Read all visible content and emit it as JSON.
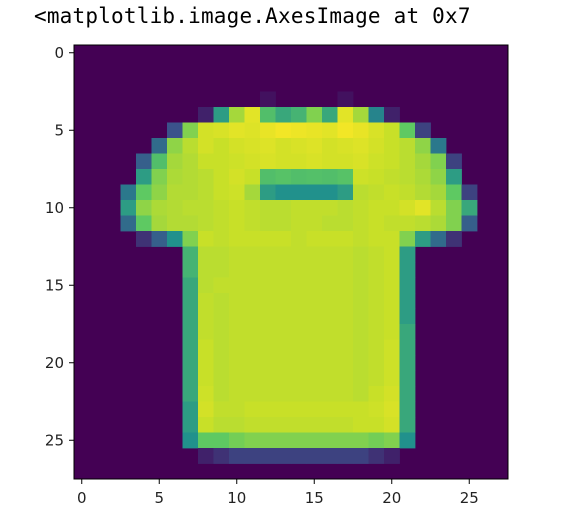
{
  "output_text": "<matplotlib.image.AxesImage at 0x7",
  "chart_data": {
    "type": "heatmap",
    "title": "",
    "xlabel": "",
    "ylabel": "",
    "colormap": "viridis",
    "grid": false,
    "xlim": [
      -0.5,
      27.5
    ],
    "ylim": [
      27.5,
      -0.5
    ],
    "xticks": [
      0,
      5,
      10,
      15,
      20,
      25
    ],
    "yticks": [
      0,
      5,
      10,
      15,
      20,
      25
    ],
    "rows": 28,
    "cols": 28,
    "values": [
      [
        0,
        0,
        0,
        0,
        0,
        0,
        0,
        0,
        0,
        0,
        0,
        0,
        0,
        0,
        0,
        0,
        0,
        0,
        0,
        0,
        0,
        0,
        0,
        0,
        0,
        0,
        0,
        0
      ],
      [
        0,
        0,
        0,
        0,
        0,
        0,
        0,
        0,
        0,
        0,
        0,
        0,
        0,
        0,
        0,
        0,
        0,
        0,
        0,
        0,
        0,
        0,
        0,
        0,
        0,
        0,
        0,
        0
      ],
      [
        0,
        0,
        0,
        0,
        0,
        0,
        0,
        0,
        0,
        0,
        0,
        0,
        0,
        0,
        0,
        0,
        0,
        0,
        0,
        0,
        0,
        0,
        0,
        0,
        0,
        0,
        0,
        0
      ],
      [
        0,
        0,
        0,
        0,
        0,
        0,
        0,
        0,
        0,
        0,
        0,
        0,
        0.05,
        0,
        0,
        0,
        0,
        0.05,
        0,
        0,
        0,
        0,
        0,
        0,
        0,
        0,
        0,
        0
      ],
      [
        0,
        0,
        0,
        0,
        0,
        0,
        0,
        0,
        0.1,
        0.55,
        0.85,
        0.95,
        0.7,
        0.6,
        0.65,
        0.8,
        0.6,
        0.95,
        0.85,
        0.45,
        0.1,
        0,
        0,
        0,
        0,
        0,
        0,
        0
      ],
      [
        0,
        0,
        0,
        0,
        0,
        0,
        0.25,
        0.8,
        0.92,
        0.93,
        0.95,
        0.94,
        0.96,
        0.98,
        0.97,
        0.96,
        0.95,
        0.98,
        0.96,
        0.93,
        0.9,
        0.75,
        0.2,
        0,
        0,
        0,
        0,
        0
      ],
      [
        0,
        0,
        0,
        0,
        0,
        0.35,
        0.82,
        0.88,
        0.92,
        0.9,
        0.92,
        0.93,
        0.94,
        0.92,
        0.93,
        0.94,
        0.92,
        0.93,
        0.94,
        0.92,
        0.9,
        0.88,
        0.82,
        0.4,
        0,
        0,
        0,
        0
      ],
      [
        0,
        0,
        0,
        0,
        0.3,
        0.7,
        0.85,
        0.87,
        0.9,
        0.9,
        0.91,
        0.92,
        0.93,
        0.92,
        0.92,
        0.93,
        0.92,
        0.92,
        0.93,
        0.91,
        0.9,
        0.88,
        0.85,
        0.8,
        0.2,
        0,
        0,
        0
      ],
      [
        0,
        0,
        0,
        0,
        0.55,
        0.8,
        0.86,
        0.87,
        0.88,
        0.9,
        0.92,
        0.9,
        0.7,
        0.72,
        0.7,
        0.71,
        0.7,
        0.72,
        0.91,
        0.9,
        0.89,
        0.88,
        0.86,
        0.82,
        0.55,
        0,
        0,
        0
      ],
      [
        0,
        0,
        0,
        0.4,
        0.75,
        0.82,
        0.87,
        0.87,
        0.88,
        0.9,
        0.91,
        0.85,
        0.55,
        0.5,
        0.5,
        0.5,
        0.5,
        0.55,
        0.88,
        0.89,
        0.9,
        0.89,
        0.87,
        0.85,
        0.75,
        0.2,
        0,
        0
      ],
      [
        0,
        0,
        0,
        0.55,
        0.82,
        0.86,
        0.87,
        0.88,
        0.88,
        0.89,
        0.9,
        0.89,
        0.88,
        0.88,
        0.89,
        0.89,
        0.89,
        0.88,
        0.89,
        0.9,
        0.9,
        0.92,
        0.95,
        0.88,
        0.8,
        0.6,
        0,
        0
      ],
      [
        0,
        0,
        0,
        0.35,
        0.75,
        0.85,
        0.87,
        0.87,
        0.88,
        0.89,
        0.9,
        0.89,
        0.88,
        0.88,
        0.89,
        0.89,
        0.88,
        0.88,
        0.89,
        0.9,
        0.89,
        0.89,
        0.88,
        0.86,
        0.8,
        0.3,
        0,
        0
      ],
      [
        0,
        0,
        0,
        0,
        0.15,
        0.3,
        0.5,
        0.8,
        0.9,
        0.89,
        0.9,
        0.9,
        0.9,
        0.9,
        0.89,
        0.9,
        0.9,
        0.9,
        0.89,
        0.9,
        0.9,
        0.8,
        0.55,
        0.35,
        0.15,
        0,
        0,
        0
      ],
      [
        0,
        0,
        0,
        0,
        0,
        0,
        0,
        0.65,
        0.88,
        0.88,
        0.89,
        0.89,
        0.89,
        0.89,
        0.89,
        0.89,
        0.89,
        0.89,
        0.88,
        0.89,
        0.9,
        0.55,
        0,
        0,
        0,
        0,
        0,
        0
      ],
      [
        0,
        0,
        0,
        0,
        0,
        0,
        0,
        0.65,
        0.88,
        0.88,
        0.89,
        0.89,
        0.89,
        0.89,
        0.89,
        0.89,
        0.89,
        0.89,
        0.88,
        0.89,
        0.9,
        0.55,
        0,
        0,
        0,
        0,
        0,
        0
      ],
      [
        0,
        0,
        0,
        0,
        0,
        0,
        0,
        0.6,
        0.88,
        0.89,
        0.89,
        0.89,
        0.89,
        0.89,
        0.89,
        0.89,
        0.89,
        0.89,
        0.88,
        0.89,
        0.9,
        0.55,
        0,
        0,
        0,
        0,
        0,
        0
      ],
      [
        0,
        0,
        0,
        0,
        0,
        0,
        0,
        0.6,
        0.89,
        0.88,
        0.89,
        0.89,
        0.89,
        0.89,
        0.89,
        0.89,
        0.89,
        0.89,
        0.88,
        0.89,
        0.9,
        0.55,
        0,
        0,
        0,
        0,
        0,
        0
      ],
      [
        0,
        0,
        0,
        0,
        0,
        0,
        0,
        0.6,
        0.89,
        0.88,
        0.89,
        0.89,
        0.89,
        0.89,
        0.89,
        0.89,
        0.89,
        0.89,
        0.88,
        0.89,
        0.9,
        0.55,
        0,
        0,
        0,
        0,
        0,
        0
      ],
      [
        0,
        0,
        0,
        0,
        0,
        0,
        0,
        0.6,
        0.89,
        0.88,
        0.89,
        0.89,
        0.89,
        0.89,
        0.89,
        0.89,
        0.89,
        0.89,
        0.88,
        0.89,
        0.9,
        0.6,
        0,
        0,
        0,
        0,
        0,
        0
      ],
      [
        0,
        0,
        0,
        0,
        0,
        0,
        0,
        0.6,
        0.9,
        0.88,
        0.89,
        0.89,
        0.89,
        0.89,
        0.89,
        0.89,
        0.89,
        0.89,
        0.88,
        0.89,
        0.91,
        0.6,
        0,
        0,
        0,
        0,
        0,
        0
      ],
      [
        0,
        0,
        0,
        0,
        0,
        0,
        0,
        0.6,
        0.9,
        0.88,
        0.89,
        0.89,
        0.89,
        0.89,
        0.89,
        0.89,
        0.89,
        0.89,
        0.88,
        0.89,
        0.91,
        0.6,
        0,
        0,
        0,
        0,
        0,
        0
      ],
      [
        0,
        0,
        0,
        0,
        0,
        0,
        0,
        0.6,
        0.9,
        0.88,
        0.89,
        0.89,
        0.89,
        0.89,
        0.89,
        0.89,
        0.89,
        0.89,
        0.88,
        0.89,
        0.91,
        0.6,
        0,
        0,
        0,
        0,
        0,
        0
      ],
      [
        0,
        0,
        0,
        0,
        0,
        0,
        0,
        0.6,
        0.91,
        0.88,
        0.89,
        0.89,
        0.89,
        0.89,
        0.89,
        0.89,
        0.89,
        0.89,
        0.88,
        0.9,
        0.92,
        0.6,
        0,
        0,
        0,
        0,
        0,
        0
      ],
      [
        0,
        0,
        0,
        0,
        0,
        0,
        0,
        0.55,
        0.92,
        0.89,
        0.89,
        0.9,
        0.9,
        0.9,
        0.9,
        0.9,
        0.9,
        0.9,
        0.9,
        0.91,
        0.93,
        0.6,
        0,
        0,
        0,
        0,
        0,
        0
      ],
      [
        0,
        0,
        0,
        0,
        0,
        0,
        0,
        0.55,
        0.9,
        0.88,
        0.88,
        0.89,
        0.89,
        0.89,
        0.89,
        0.89,
        0.89,
        0.89,
        0.9,
        0.9,
        0.92,
        0.6,
        0,
        0,
        0,
        0,
        0,
        0
      ],
      [
        0,
        0,
        0,
        0,
        0,
        0,
        0,
        0.5,
        0.75,
        0.75,
        0.78,
        0.8,
        0.8,
        0.8,
        0.8,
        0.8,
        0.8,
        0.8,
        0.8,
        0.78,
        0.8,
        0.5,
        0,
        0,
        0,
        0,
        0,
        0
      ],
      [
        0,
        0,
        0,
        0,
        0,
        0,
        0,
        0,
        0.1,
        0.15,
        0.2,
        0.2,
        0.2,
        0.2,
        0.2,
        0.2,
        0.2,
        0.2,
        0.2,
        0.15,
        0.1,
        0,
        0,
        0,
        0,
        0,
        0,
        0
      ],
      [
        0,
        0,
        0,
        0,
        0,
        0,
        0,
        0,
        0,
        0,
        0,
        0,
        0,
        0,
        0,
        0,
        0,
        0,
        0,
        0,
        0,
        0,
        0,
        0,
        0,
        0,
        0,
        0
      ]
    ]
  }
}
